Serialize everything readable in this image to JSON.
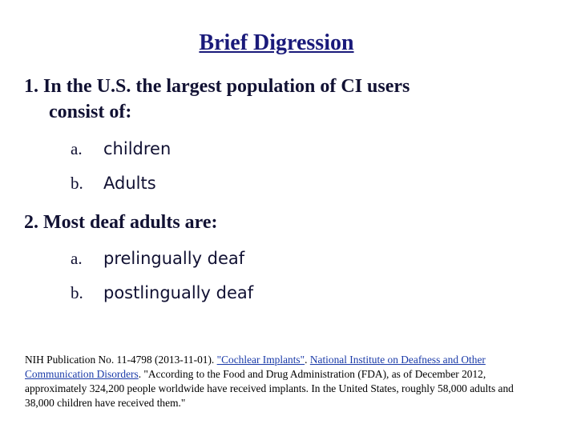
{
  "title": "Brief Digression",
  "q1": {
    "line1": "1. In the U.S. the largest population of CI users",
    "line2": "consist of:",
    "options": [
      {
        "letter": "a.",
        "text": "children"
      },
      {
        "letter": "b.",
        "text": "Adults"
      }
    ]
  },
  "q2": {
    "line1": "2. Most deaf adults are:",
    "options": [
      {
        "letter": "a.",
        "text": "prelingually deaf"
      },
      {
        "letter": "b.",
        "text": "postlingually deaf"
      }
    ]
  },
  "citation": {
    "prefix": " NIH Publication No. 11-4798 (2013-11-01). ",
    "link1": "\"Cochlear Implants\"",
    "sep": ". ",
    "link2": "National Institute on Deafness and Other Communication Disorders",
    "rest": ". \"According to the Food and Drug Administration (FDA), as of December 2012, approximately 324,200 people worldwide have received implants. In the United States, roughly 58,000 adults and 38,000 children have received them.\""
  },
  "colors": {
    "title": "#1a1a7a",
    "link": "#1a3aa8"
  }
}
